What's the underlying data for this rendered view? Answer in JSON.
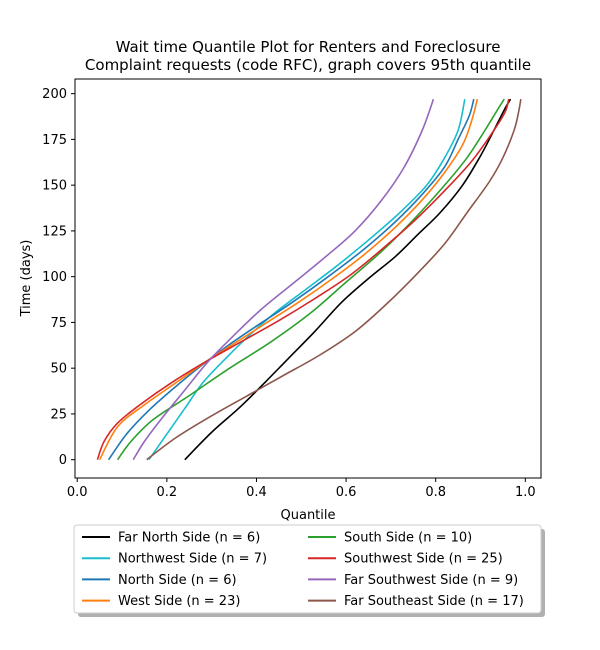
{
  "chart_data": {
    "type": "line",
    "title": "Wait time Quantile Plot for Renters and Foreclosure\nComplaint  requests (code RFC), graph covers 95th quantile",
    "xlabel": "Quantile",
    "ylabel": "Time (days)",
    "xlim": [
      -0.005,
      1.035
    ],
    "ylim": [
      -10,
      208
    ],
    "xticks": [
      0.0,
      0.2,
      0.4,
      0.6,
      0.8,
      1.0
    ],
    "xtick_labels": [
      "0.0",
      "0.2",
      "0.4",
      "0.6",
      "0.8",
      "1.0"
    ],
    "yticks": [
      0,
      25,
      50,
      75,
      100,
      125,
      150,
      175,
      200
    ],
    "ytick_labels": [
      "0",
      "25",
      "50",
      "75",
      "100",
      "125",
      "150",
      "175",
      "200"
    ],
    "grid": false,
    "legend": {
      "placement": "below",
      "columns": 2
    },
    "series": [
      {
        "name": "Far North Side (n = 6)",
        "color": "#000000",
        "points": [
          [
            0.24,
            0
          ],
          [
            0.3,
            15
          ],
          [
            0.36,
            28
          ],
          [
            0.41,
            40
          ],
          [
            0.47,
            55
          ],
          [
            0.53,
            70
          ],
          [
            0.59,
            86
          ],
          [
            0.65,
            99
          ],
          [
            0.71,
            111
          ],
          [
            0.76,
            123
          ],
          [
            0.81,
            135
          ],
          [
            0.86,
            150
          ],
          [
            0.9,
            166
          ],
          [
            0.93,
            180
          ],
          [
            0.955,
            192
          ],
          [
            0.967,
            197
          ]
        ]
      },
      {
        "name": "Northwest Side (n = 7)",
        "color": "#17becf",
        "points": [
          [
            0.16,
            0
          ],
          [
            0.2,
            14
          ],
          [
            0.24,
            28
          ],
          [
            0.28,
            42
          ],
          [
            0.33,
            55
          ],
          [
            0.38,
            67
          ],
          [
            0.44,
            80
          ],
          [
            0.51,
            93
          ],
          [
            0.58,
            106
          ],
          [
            0.65,
            120
          ],
          [
            0.72,
            135
          ],
          [
            0.78,
            150
          ],
          [
            0.82,
            165
          ],
          [
            0.85,
            180
          ],
          [
            0.865,
            197
          ]
        ]
      },
      {
        "name": "North Side (n = 6)",
        "color": "#1f77b4",
        "points": [
          [
            0.07,
            0
          ],
          [
            0.11,
            14
          ],
          [
            0.16,
            27
          ],
          [
            0.22,
            40
          ],
          [
            0.28,
            52
          ],
          [
            0.34,
            63
          ],
          [
            0.4,
            73
          ],
          [
            0.48,
            86
          ],
          [
            0.56,
            100
          ],
          [
            0.64,
            115
          ],
          [
            0.71,
            130
          ],
          [
            0.77,
            145
          ],
          [
            0.82,
            160
          ],
          [
            0.85,
            175
          ],
          [
            0.875,
            188
          ],
          [
            0.885,
            197
          ]
        ]
      },
      {
        "name": "West Side (n = 23)",
        "color": "#ff7f0e",
        "points": [
          [
            0.05,
            0
          ],
          [
            0.09,
            18
          ],
          [
            0.15,
            30
          ],
          [
            0.22,
            42
          ],
          [
            0.29,
            54
          ],
          [
            0.36,
            65
          ],
          [
            0.43,
            76
          ],
          [
            0.5,
            87
          ],
          [
            0.57,
            99
          ],
          [
            0.64,
            112
          ],
          [
            0.71,
            127
          ],
          [
            0.77,
            142
          ],
          [
            0.82,
            157
          ],
          [
            0.86,
            172
          ],
          [
            0.88,
            185
          ],
          [
            0.893,
            197
          ]
        ]
      },
      {
        "name": "South Side (n = 10)",
        "color": "#2ca02c",
        "points": [
          [
            0.09,
            0
          ],
          [
            0.12,
            10
          ],
          [
            0.17,
            22
          ],
          [
            0.25,
            35
          ],
          [
            0.34,
            50
          ],
          [
            0.43,
            64
          ],
          [
            0.52,
            80
          ],
          [
            0.6,
            97
          ],
          [
            0.68,
            114
          ],
          [
            0.75,
            131
          ],
          [
            0.82,
            150
          ],
          [
            0.87,
            165
          ],
          [
            0.91,
            180
          ],
          [
            0.94,
            192
          ],
          [
            0.953,
            197
          ]
        ]
      },
      {
        "name": "Southwest Side (n = 25)",
        "color": "#d62728",
        "points": [
          [
            0.045,
            0
          ],
          [
            0.06,
            10
          ],
          [
            0.09,
            20
          ],
          [
            0.14,
            30
          ],
          [
            0.21,
            42
          ],
          [
            0.29,
            54
          ],
          [
            0.37,
            65
          ],
          [
            0.45,
            76
          ],
          [
            0.53,
            88
          ],
          [
            0.61,
            101
          ],
          [
            0.68,
            115
          ],
          [
            0.75,
            130
          ],
          [
            0.82,
            147
          ],
          [
            0.88,
            163
          ],
          [
            0.93,
            180
          ],
          [
            0.955,
            190
          ],
          [
            0.963,
            197
          ]
        ]
      },
      {
        "name": "Far Southwest Side (n = 9)",
        "color": "#9467bd",
        "points": [
          [
            0.125,
            0
          ],
          [
            0.15,
            10
          ],
          [
            0.19,
            23
          ],
          [
            0.24,
            38
          ],
          [
            0.29,
            53
          ],
          [
            0.35,
            68
          ],
          [
            0.41,
            82
          ],
          [
            0.48,
            96
          ],
          [
            0.55,
            110
          ],
          [
            0.62,
            125
          ],
          [
            0.68,
            142
          ],
          [
            0.73,
            160
          ],
          [
            0.77,
            180
          ],
          [
            0.795,
            197
          ]
        ]
      },
      {
        "name": "Far Southeast Side (n = 17)",
        "color": "#8c564b",
        "points": [
          [
            0.155,
            0
          ],
          [
            0.22,
            12
          ],
          [
            0.3,
            24
          ],
          [
            0.38,
            35
          ],
          [
            0.46,
            46
          ],
          [
            0.54,
            57
          ],
          [
            0.62,
            70
          ],
          [
            0.69,
            85
          ],
          [
            0.76,
            102
          ],
          [
            0.82,
            118
          ],
          [
            0.87,
            135
          ],
          [
            0.92,
            152
          ],
          [
            0.95,
            165
          ],
          [
            0.975,
            180
          ],
          [
            0.985,
            190
          ],
          [
            0.99,
            197
          ]
        ]
      }
    ]
  }
}
